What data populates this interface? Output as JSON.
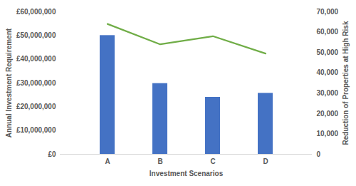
{
  "chart_data": {
    "type": "bar",
    "x_label": "Investment Scenarios",
    "y_label": "Annual Investment Requirement",
    "y2_label": "Reduction of Properties at High Risk",
    "categories": [
      "A",
      "B",
      "C",
      "D"
    ],
    "series": [
      {
        "type": "bar",
        "color": "#4472c4",
        "values": [
          50000000,
          29800000,
          24000000,
          25700000
        ]
      },
      {
        "type": "line",
        "color": "#70ad47",
        "axis": "y2",
        "values": [
          64000,
          54000,
          58000,
          49500
        ]
      }
    ],
    "ylim": [
      0,
      60000000
    ],
    "yticks": [
      {
        "value": 0,
        "label": "£0"
      },
      {
        "value": 10000000,
        "label": "£10,000,000"
      },
      {
        "value": 20000000,
        "label": "£20,000,000"
      },
      {
        "value": 30000000,
        "label": "£30,000,000"
      },
      {
        "value": 40000000,
        "label": "£40,000,000"
      },
      {
        "value": 50000000,
        "label": "£50,000,000"
      },
      {
        "value": 60000000,
        "label": "£60,000,000"
      }
    ],
    "y2lim": [
      0,
      70000
    ],
    "y2ticks": [
      0,
      {
        "value": 10000,
        "label": "10,000"
      },
      {
        "value": 20000,
        "label": "20,000"
      },
      {
        "value": 30000,
        "label": "30,000"
      },
      {
        "value": 40000,
        "label": "40,000"
      },
      {
        "value": 50000,
        "label": "50,000"
      },
      {
        "value": 60000,
        "label": "60,000"
      },
      {
        "value": 70000,
        "label": "70,000"
      }
    ],
    "grid": false
  }
}
